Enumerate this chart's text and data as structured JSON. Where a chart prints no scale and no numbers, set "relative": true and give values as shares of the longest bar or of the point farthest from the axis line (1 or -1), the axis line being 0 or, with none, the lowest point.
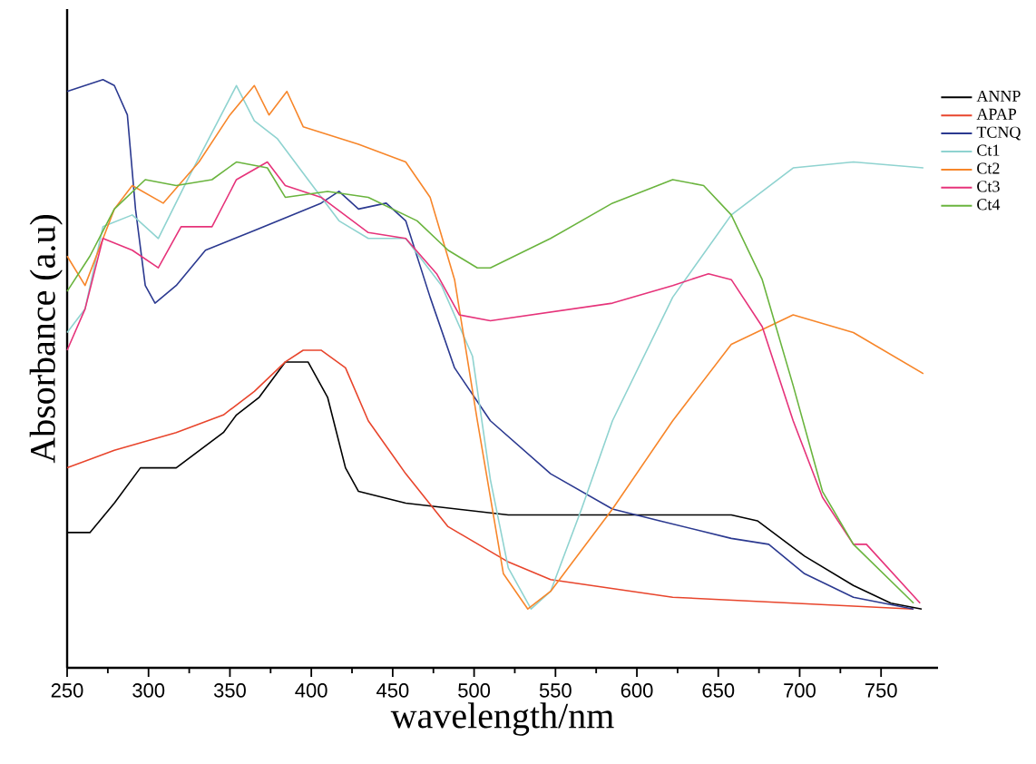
{
  "chart_data": {
    "type": "line",
    "relative": true,
    "xlabel": "wavelength/nm",
    "ylabel": "Absorbance (a.u)",
    "xlim": [
      250,
      785
    ],
    "xticks": [
      250,
      300,
      350,
      400,
      450,
      500,
      550,
      600,
      650,
      700,
      750
    ],
    "legend": "top right",
    "series": [
      {
        "name": "ANNP",
        "color": "#000000",
        "x": [
          250,
          264,
          279,
          295,
          317,
          346,
          354,
          368,
          384,
          398,
          410,
          421,
          429,
          458,
          521,
          658,
          674,
          703,
          733,
          756,
          775
        ],
        "values": [
          0.23,
          0.23,
          0.28,
          0.34,
          0.34,
          0.4,
          0.43,
          0.46,
          0.52,
          0.52,
          0.46,
          0.34,
          0.3,
          0.28,
          0.26,
          0.26,
          0.25,
          0.19,
          0.14,
          0.11,
          0.1
        ]
      },
      {
        "name": "APAP",
        "color": "#e8452c",
        "x": [
          250,
          279,
          317,
          346,
          365,
          384,
          395,
          406,
          421,
          435,
          458,
          484,
          521,
          547,
          622,
          696,
          770
        ],
        "values": [
          0.34,
          0.37,
          0.4,
          0.43,
          0.47,
          0.52,
          0.54,
          0.54,
          0.51,
          0.42,
          0.33,
          0.24,
          0.18,
          0.15,
          0.12,
          0.11,
          0.1
        ]
      },
      {
        "name": "TCNQ",
        "color": "#2b3990",
        "x": [
          250,
          272,
          279,
          287,
          292,
          298,
          304,
          317,
          335,
          362,
          406,
          417,
          429,
          446,
          458,
          473,
          488,
          510,
          547,
          585,
          614,
          658,
          681,
          703,
          733,
          770
        ],
        "values": [
          0.98,
          1.0,
          0.99,
          0.94,
          0.78,
          0.65,
          0.62,
          0.65,
          0.71,
          0.74,
          0.79,
          0.81,
          0.78,
          0.79,
          0.76,
          0.63,
          0.51,
          0.42,
          0.33,
          0.27,
          0.25,
          0.22,
          0.21,
          0.16,
          0.12,
          0.1
        ]
      },
      {
        "name": "Ct1",
        "color": "#8fd3d0",
        "x": [
          250,
          261,
          272,
          290,
          306,
          324,
          339,
          354,
          365,
          379,
          398,
          417,
          435,
          458,
          480,
          499,
          510,
          521,
          535,
          547,
          566,
          585,
          622,
          658,
          696,
          733,
          776
        ],
        "values": [
          0.57,
          0.61,
          0.75,
          0.77,
          0.73,
          0.83,
          0.91,
          0.99,
          0.93,
          0.9,
          0.83,
          0.76,
          0.73,
          0.73,
          0.65,
          0.53,
          0.32,
          0.17,
          0.1,
          0.13,
          0.27,
          0.42,
          0.63,
          0.77,
          0.85,
          0.86,
          0.85
        ]
      },
      {
        "name": "Ct2",
        "color": "#f7862a",
        "x": [
          250,
          261,
          279,
          290,
          309,
          331,
          350,
          365,
          374,
          385,
          395,
          429,
          458,
          473,
          488,
          502,
          518,
          533,
          547,
          585,
          622,
          658,
          696,
          733,
          776
        ],
        "values": [
          0.7,
          0.65,
          0.78,
          0.82,
          0.79,
          0.86,
          0.94,
          0.99,
          0.94,
          0.98,
          0.92,
          0.89,
          0.86,
          0.8,
          0.66,
          0.42,
          0.16,
          0.1,
          0.13,
          0.27,
          0.42,
          0.55,
          0.6,
          0.57,
          0.5
        ]
      },
      {
        "name": "Ct3",
        "color": "#e6337a",
        "x": [
          250,
          261,
          272,
          290,
          306,
          320,
          339,
          354,
          373,
          384,
          406,
          435,
          458,
          477,
          491,
          510,
          585,
          622,
          644,
          658,
          677,
          696,
          714,
          733,
          741,
          774
        ],
        "values": [
          0.54,
          0.61,
          0.73,
          0.71,
          0.68,
          0.75,
          0.75,
          0.83,
          0.86,
          0.82,
          0.8,
          0.74,
          0.73,
          0.67,
          0.6,
          0.59,
          0.62,
          0.65,
          0.67,
          0.66,
          0.58,
          0.42,
          0.29,
          0.21,
          0.21,
          0.11
        ]
      },
      {
        "name": "Ct4",
        "color": "#6ab43e",
        "x": [
          250,
          264,
          279,
          298,
          317,
          339,
          354,
          373,
          384,
          410,
          435,
          465,
          484,
          502,
          510,
          547,
          585,
          622,
          641,
          658,
          677,
          696,
          714,
          733,
          770
        ],
        "values": [
          0.64,
          0.7,
          0.78,
          0.83,
          0.82,
          0.83,
          0.86,
          0.85,
          0.8,
          0.81,
          0.8,
          0.76,
          0.71,
          0.68,
          0.68,
          0.73,
          0.79,
          0.83,
          0.82,
          0.77,
          0.66,
          0.48,
          0.3,
          0.21,
          0.11
        ]
      }
    ]
  }
}
